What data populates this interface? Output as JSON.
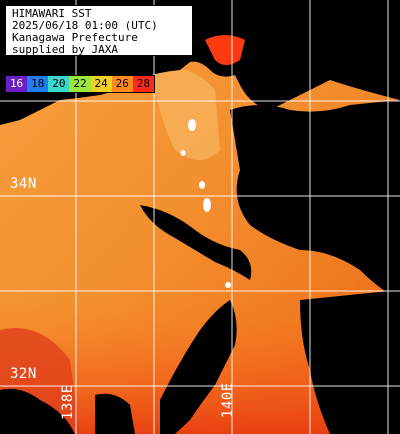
{
  "header": {
    "line1": "HIMAWARI SST",
    "line2": "2025/06/18 01:00 (UTC)",
    "line3": "Kanagawa Prefecture",
    "line4": "supplied by JAXA"
  },
  "colorscale": {
    "ticks": [
      "16",
      "18",
      "20",
      "22",
      "24",
      "26",
      "28"
    ],
    "colors": [
      "#6a1fc7",
      "#1f7ff0",
      "#39d9cc",
      "#9be83a",
      "#f0d020",
      "#ff8a1e",
      "#ff2a1a"
    ]
  },
  "grid_labels": {
    "lat_34": "34N",
    "lat_32": "32N",
    "lon_138": "138E",
    "lon_140": "140E"
  },
  "colors": {
    "land": "#000000",
    "sea_base": "#f08a2a",
    "grid": "#ffffff"
  }
}
